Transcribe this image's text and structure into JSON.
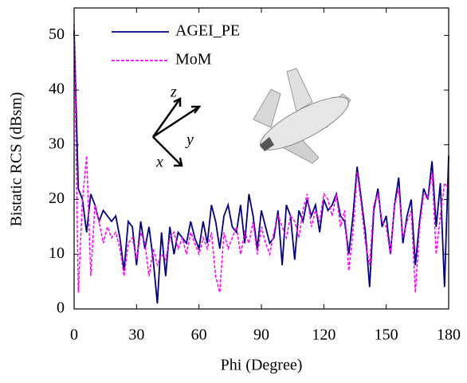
{
  "chart_data": {
    "type": "line",
    "xlabel": "Phi (Degree)",
    "ylabel": "Bistatic RCS  (dBsm)",
    "x": [
      0,
      2,
      4,
      6,
      8,
      10,
      12,
      14,
      16,
      18,
      20,
      22,
      24,
      26,
      28,
      30,
      32,
      34,
      36,
      38,
      40,
      42,
      44,
      46,
      48,
      50,
      52,
      54,
      56,
      58,
      60,
      62,
      64,
      66,
      68,
      70,
      72,
      74,
      76,
      78,
      80,
      82,
      84,
      86,
      88,
      90,
      92,
      94,
      96,
      98,
      100,
      102,
      104,
      106,
      108,
      110,
      112,
      114,
      116,
      118,
      120,
      122,
      124,
      126,
      128,
      130,
      132,
      134,
      136,
      138,
      140,
      142,
      144,
      146,
      148,
      150,
      152,
      154,
      156,
      158,
      160,
      162,
      164,
      166,
      168,
      170,
      172,
      174,
      176,
      178,
      180
    ],
    "series": [
      {
        "name": "AGEI_PE",
        "color": "#000080",
        "dashed": false,
        "values": [
          51,
          22,
          20,
          14,
          21,
          19,
          16,
          18,
          17,
          16,
          17,
          13,
          7,
          16,
          15,
          8,
          16,
          11,
          15,
          9,
          1,
          14,
          6,
          15,
          10,
          14,
          13,
          12,
          16,
          13,
          11,
          16,
          12,
          19,
          16,
          11,
          17,
          19,
          15,
          14,
          19,
          12,
          21,
          17,
          11,
          18,
          15,
          12,
          13,
          18,
          8,
          19,
          17,
          9,
          18,
          16,
          20,
          17,
          19,
          14,
          20,
          18,
          19,
          21,
          17,
          16,
          10,
          17,
          26,
          20,
          14,
          4,
          18,
          22,
          15,
          17,
          10,
          19,
          24,
          12,
          17,
          20,
          8,
          16,
          22,
          20,
          27,
          15,
          23,
          4,
          28
        ]
      },
      {
        "name": "MoM",
        "color": "#ff00ff",
        "dashed": true,
        "values": [
          52,
          3,
          20,
          28,
          6,
          19,
          16,
          12,
          15,
          13,
          14,
          11,
          6,
          12,
          13,
          9,
          14,
          12,
          6,
          11,
          8,
          10,
          9,
          13,
          14,
          11,
          13,
          10,
          14,
          12,
          10,
          13,
          11,
          14,
          6,
          3,
          14,
          11,
          13,
          15,
          10,
          14,
          12,
          16,
          10,
          15,
          12,
          10,
          14,
          17,
          15,
          13,
          17,
          16,
          13,
          18,
          21,
          15,
          18,
          16,
          21,
          20,
          17,
          21,
          15,
          18,
          7,
          14,
          25,
          19,
          12,
          8,
          19,
          21,
          16,
          15,
          10,
          19,
          22,
          13,
          16,
          18,
          3,
          15,
          21,
          20,
          25,
          10,
          17,
          23,
          22
        ]
      }
    ],
    "xlim": [
      0,
      180
    ],
    "xticks": [
      0,
      30,
      60,
      90,
      120,
      150,
      180
    ],
    "ylim": [
      0,
      55
    ],
    "yticks": [
      0,
      10,
      20,
      30,
      40,
      50
    ],
    "legend": "upper left",
    "grid": false,
    "annotations": [
      "z",
      "y",
      "x"
    ]
  }
}
